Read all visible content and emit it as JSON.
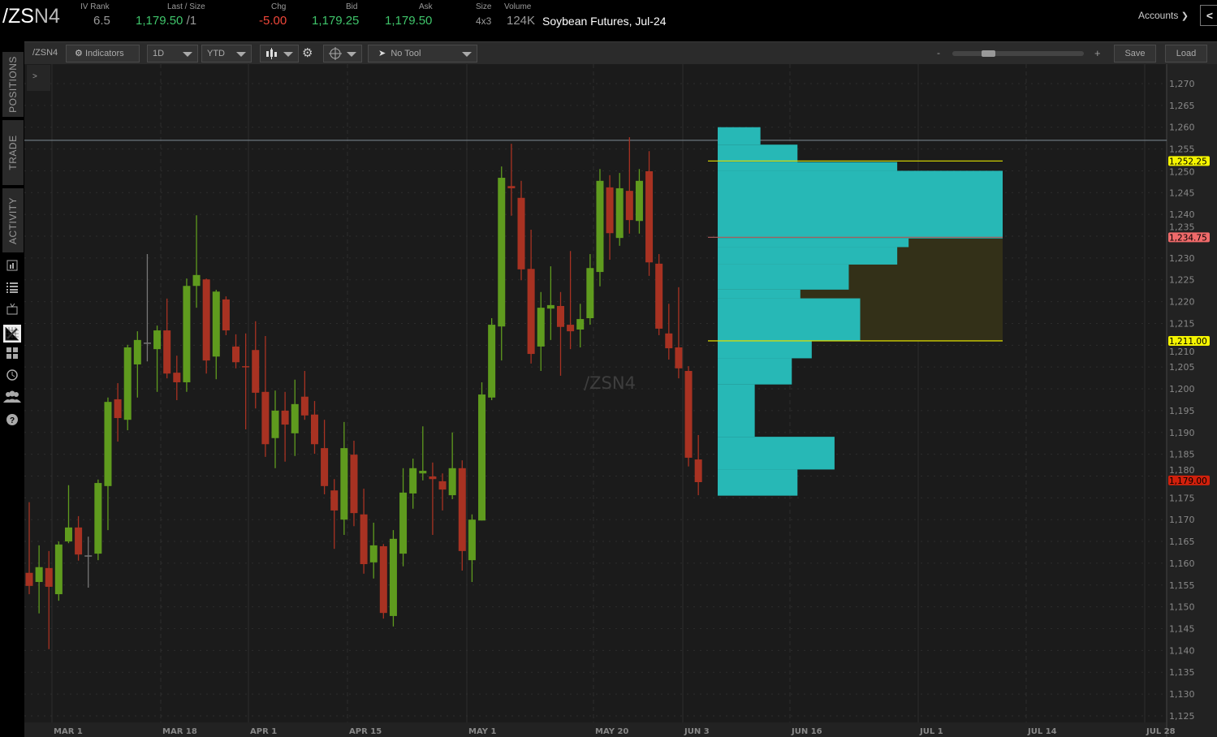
{
  "header": {
    "symbol_main": "/ZS",
    "symbol_suffix": "N4",
    "iv_rank_label": "IV Rank",
    "iv_rank": "6.5",
    "last_size_label": "Last / Size",
    "last": "1,179.50",
    "size_suffix": "/1",
    "chg_label": "Chg",
    "chg": "-5.00",
    "bid_label": "Bid",
    "bid": "1,179.25",
    "ask_label": "Ask",
    "ask": "1,179.50",
    "size_label": "Size",
    "size": "4x3",
    "volume_label": "Volume",
    "volume": "124K",
    "description": "Soybean Futures, Jul-24",
    "accounts_label": "Accounts"
  },
  "toolbar": {
    "symbol": "/ZSN4",
    "indicators_label": "Indicators",
    "aggregation": "1D",
    "range": "YTD",
    "drawing_tool": "No Tool",
    "zoom_minus": "-",
    "zoom_plus": "+",
    "zoom_level": 0.25,
    "save_label": "Save",
    "load_label": "Load",
    "expand_label": ">"
  },
  "sidebar": {
    "tabs": [
      "POSITIONS",
      "TRADE",
      "ACTIVITY"
    ],
    "icons": [
      "news-icon",
      "watchlist-icon",
      "tv-icon",
      "chart-icon",
      "grid-icon",
      "history-icon",
      "community-icon",
      "help-icon"
    ],
    "active_icon": "chart-icon"
  },
  "colors": {
    "up": "#5f9b1e",
    "down": "#a83222",
    "neutral": "#777777",
    "profile": "#27b8b6",
    "value_area": "#333018",
    "marker_yellow": "#f5f500",
    "marker_red": "#f06a6a",
    "last_price_bg": "#d0200c"
  },
  "chart_data": {
    "type": "candlestick",
    "watermark": "/ZSN4",
    "ylim": [
      1125,
      1270
    ],
    "y_ticks": [
      "1,125",
      "1,130",
      "1,135",
      "1,140",
      "1,145",
      "1,150",
      "1,155",
      "1,160",
      "1,165",
      "1,170",
      "1,175",
      "1,180",
      "1,185",
      "1,190",
      "1,195",
      "1,200",
      "1,205",
      "1,210",
      "1,215",
      "1,220",
      "1,225",
      "1,230",
      "1,235",
      "1,240",
      "1,245",
      "1,250",
      "1,255",
      "1,260",
      "1,265",
      "1,270"
    ],
    "x_ticks": [
      "MAR 1",
      "MAR 18",
      "APR 1",
      "APR 15",
      "MAY 1",
      "MAY 20",
      "JUN 3",
      "JUN 16",
      "JUL 1",
      "JUL 14",
      "JUL 28"
    ],
    "grid": true,
    "ohlc": [
      [
        1157.8,
        1174,
        1152.9,
        1154.8
      ],
      [
        1155.7,
        1164.1,
        1148.5,
        1159.1
      ],
      [
        1158.9,
        1162.8,
        1140.3,
        1154.6
      ],
      [
        1152.9,
        1165,
        1151.4,
        1164.3
      ],
      [
        1165,
        1177.9,
        1164.6,
        1168.2
      ],
      [
        1168.2,
        1170.8,
        1160.6,
        1162
      ],
      [
        1161.8,
        1166.1,
        1154.4,
        1161.8
      ],
      [
        1162.2,
        1179.2,
        1160.7,
        1178.4
      ],
      [
        1177.7,
        1198,
        1167.6,
        1197
      ],
      [
        1197.6,
        1201.3,
        1187.9,
        1193.3
      ],
      [
        1192.9,
        1210.1,
        1190.5,
        1209.5
      ],
      [
        1205.6,
        1213.2,
        1198,
        1211.2
      ],
      [
        1210.6,
        1230.9,
        1206.3,
        1210.6
      ],
      [
        1209.1,
        1214.5,
        1199.3,
        1213.4
      ],
      [
        1213.4,
        1220.7,
        1202.4,
        1203.5
      ],
      [
        1203.7,
        1207.6,
        1197.4,
        1201.5
      ],
      [
        1201.5,
        1225.3,
        1199.3,
        1223.6
      ],
      [
        1223.6,
        1239.8,
        1218.6,
        1226.1
      ],
      [
        1225.1,
        1225.3,
        1203.5,
        1206.5
      ],
      [
        1207.4,
        1222.7,
        1202.2,
        1222.3
      ],
      [
        1220.5,
        1221.2,
        1212.3,
        1213.4
      ],
      [
        1209.7,
        1212.5,
        1204.7,
        1206.1
      ],
      [
        1205.2,
        1212.7,
        1190.7,
        1205.0
      ],
      [
        1208.9,
        1215.5,
        1195.5,
        1199.1
      ],
      [
        1199.3,
        1212.1,
        1184.4,
        1187.3
      ],
      [
        1188.7,
        1199.6,
        1181.8,
        1195
      ],
      [
        1195,
        1199.3,
        1183.3,
        1191.8
      ],
      [
        1189.8,
        1202.1,
        1184.6,
        1196.5
      ],
      [
        1198.2,
        1204.1,
        1192.9,
        1193.9
      ],
      [
        1194.1,
        1197.2,
        1185.1,
        1187.3
      ],
      [
        1186.4,
        1192.9,
        1175.8,
        1177.7
      ],
      [
        1176.7,
        1179.3,
        1163.3,
        1172.1
      ],
      [
        1170,
        1192.4,
        1166.5,
        1186.4
      ],
      [
        1184.9,
        1188.1,
        1168.5,
        1171.5
      ],
      [
        1171.2,
        1177.1,
        1157.6,
        1159.8
      ],
      [
        1160.2,
        1169.3,
        1156.5,
        1164.1
      ],
      [
        1163.9,
        1164.4,
        1147.3,
        1148.6
      ],
      [
        1147.9,
        1167.6,
        1145.5,
        1165.6
      ],
      [
        1162.2,
        1181.8,
        1159.3,
        1176.2
      ],
      [
        1176,
        1184,
        1172.5,
        1181.8
      ],
      [
        1180.6,
        1191.4,
        1179,
        1181.2
      ],
      [
        1179.9,
        1183.1,
        1166.5,
        1179.3
      ],
      [
        1178.8,
        1180.6,
        1172.1,
        1176.9
      ],
      [
        1175.6,
        1190,
        1174.7,
        1181.8
      ],
      [
        1181.8,
        1183.6,
        1158.3,
        1162.8
      ],
      [
        1160.7,
        1171.2,
        1155.7,
        1170
      ],
      [
        1169.8,
        1201.5,
        1169.8,
        1198.7
      ],
      [
        1198,
        1216.2,
        1197.4,
        1214.7
      ],
      [
        1214.3,
        1251,
        1206.5,
        1248.4
      ],
      [
        1246.5,
        1256.2,
        1239.7,
        1246
      ],
      [
        1243.8,
        1247.7,
        1224.9,
        1227.4
      ],
      [
        1227.5,
        1236.5,
        1205.8,
        1208
      ],
      [
        1209.7,
        1222.2,
        1204.1,
        1218.6
      ],
      [
        1218.4,
        1228.1,
        1211.2,
        1219.2
      ],
      [
        1219,
        1222.2,
        1203,
        1214.2
      ],
      [
        1214.7,
        1231.6,
        1209.1,
        1213.2
      ],
      [
        1213.6,
        1219.5,
        1209.5,
        1216
      ],
      [
        1216.2,
        1230.9,
        1214.7,
        1227.7
      ],
      [
        1226.8,
        1250.4,
        1223.5,
        1247.7
      ],
      [
        1246.2,
        1249,
        1229.6,
        1235.7
      ],
      [
        1234.6,
        1249.5,
        1232.8,
        1246
      ],
      [
        1245.4,
        1257.7,
        1235.6,
        1238.7
      ],
      [
        1238.5,
        1250.4,
        1235.6,
        1247.7
      ],
      [
        1249.9,
        1254.5,
        1225.9,
        1229
      ],
      [
        1228.7,
        1230.9,
        1212.3,
        1213.8
      ],
      [
        1212.7,
        1219.5,
        1206.7,
        1209.3
      ],
      [
        1209.5,
        1223.3,
        1202.4,
        1204.7
      ],
      [
        1204.1,
        1205.2,
        1182.2,
        1184.2
      ],
      [
        1183.8,
        1189.4,
        1175.6,
        1178.6
      ]
    ],
    "volume_profile": [
      {
        "low": 1256,
        "high": 1260,
        "volume": 0.15
      },
      {
        "low": 1252,
        "high": 1256,
        "volume": 0.28
      },
      {
        "low": 1250,
        "high": 1252,
        "volume": 0.63
      },
      {
        "low": 1234.5,
        "high": 1250,
        "volume": 1.0
      },
      {
        "low": 1232.5,
        "high": 1234.5,
        "volume": 0.67
      },
      {
        "low": 1228.5,
        "high": 1232.5,
        "volume": 0.63
      },
      {
        "low": 1222.75,
        "high": 1228.5,
        "volume": 0.46
      },
      {
        "low": 1220.75,
        "high": 1222.75,
        "volume": 0.29
      },
      {
        "low": 1211,
        "high": 1220.75,
        "volume": 0.5
      },
      {
        "low": 1207,
        "high": 1211,
        "volume": 0.33
      },
      {
        "low": 1201,
        "high": 1207,
        "volume": 0.26
      },
      {
        "low": 1189,
        "high": 1201,
        "volume": 0.13
      },
      {
        "low": 1181.5,
        "high": 1189,
        "volume": 0.41
      },
      {
        "low": 1175.5,
        "high": 1181.5,
        "volume": 0.28
      }
    ],
    "value_area": {
      "high": 1234.75,
      "low": 1211.0
    },
    "reference_line": 1257,
    "markers": [
      {
        "label": "1,252.25",
        "price": 1252.25,
        "kind": "yellow"
      },
      {
        "label": "1,234.75",
        "price": 1234.75,
        "kind": "red"
      },
      {
        "label": "1,211.00",
        "price": 1211.0,
        "kind": "yellow"
      },
      {
        "label": "1,179.00",
        "price": 1179.0,
        "kind": "last"
      }
    ]
  }
}
